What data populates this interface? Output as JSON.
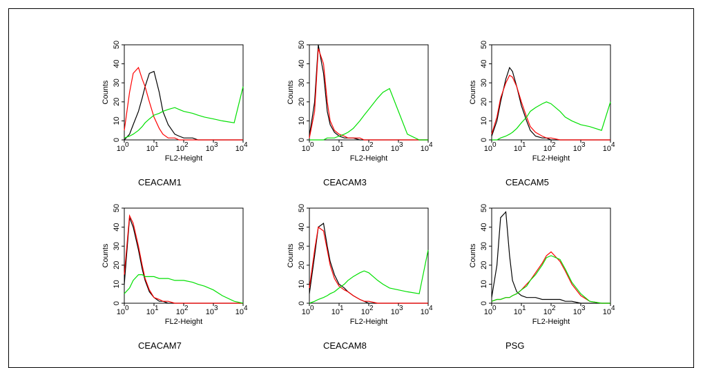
{
  "chart_data": [
    {
      "type": "line",
      "title": "CEACAM1",
      "xlabel": "FL2-Height",
      "ylabel": "Counts",
      "log_x": true,
      "x": [
        1,
        1.5,
        2,
        3,
        4,
        5,
        7,
        10,
        15,
        20,
        30,
        50,
        70,
        100,
        200,
        300,
        500,
        1000,
        2000,
        5000,
        10000
      ],
      "xlim": [
        1,
        10000
      ],
      "ylim": [
        0,
        50
      ],
      "yticks": [
        0,
        10,
        20,
        30,
        40,
        50
      ],
      "xticks": [
        {
          "value": 1,
          "label": "10",
          "sup": "0"
        },
        {
          "value": 10,
          "label": "10",
          "sup": "1"
        },
        {
          "value": 100,
          "label": "10",
          "sup": "2"
        },
        {
          "value": 1000,
          "label": "10",
          "sup": "3"
        },
        {
          "value": 10000,
          "label": "10",
          "sup": "4"
        }
      ],
      "series": [
        {
          "color": "#000000",
          "values": [
            0,
            3,
            8,
            15,
            22,
            28,
            35,
            36,
            25,
            15,
            8,
            3,
            2,
            1,
            1,
            0,
            0,
            0,
            0,
            0,
            0
          ]
        },
        {
          "color": "#ff0000",
          "values": [
            5,
            25,
            35,
            38,
            32,
            28,
            20,
            12,
            6,
            3,
            1,
            1,
            0,
            0,
            0,
            0,
            0,
            0,
            0,
            0,
            0
          ]
        },
        {
          "color": "#00e000",
          "values": [
            1,
            2,
            3,
            5,
            7,
            9,
            11,
            13,
            14,
            15,
            16,
            17,
            16,
            15,
            14,
            13,
            12,
            11,
            10,
            9,
            28
          ]
        }
      ]
    },
    {
      "type": "line",
      "title": "CEACAM3",
      "xlabel": "FL2-Height",
      "ylabel": "Counts",
      "log_x": true,
      "x": [
        1,
        1.5,
        2,
        3,
        4,
        5,
        7,
        10,
        15,
        20,
        30,
        50,
        70,
        100,
        200,
        300,
        500,
        1000,
        2000,
        5000,
        10000
      ],
      "xlim": [
        1,
        10000
      ],
      "ylim": [
        0,
        50
      ],
      "yticks": [
        0,
        10,
        20,
        30,
        40,
        50
      ],
      "xticks": [
        {
          "value": 1,
          "label": "10",
          "sup": "0"
        },
        {
          "value": 10,
          "label": "10",
          "sup": "1"
        },
        {
          "value": 100,
          "label": "10",
          "sup": "2"
        },
        {
          "value": 1000,
          "label": "10",
          "sup": "3"
        },
        {
          "value": 10000,
          "label": "10",
          "sup": "4"
        }
      ],
      "series": [
        {
          "color": "#000000",
          "values": [
            2,
            20,
            50,
            35,
            15,
            8,
            4,
            2,
            1,
            1,
            1,
            0,
            0,
            0,
            0,
            0,
            0,
            0,
            0,
            0,
            0
          ]
        },
        {
          "color": "#ff0000",
          "values": [
            1,
            15,
            48,
            40,
            20,
            10,
            5,
            3,
            2,
            1,
            1,
            1,
            0,
            0,
            0,
            0,
            0,
            0,
            0,
            0,
            0
          ]
        },
        {
          "color": "#00e000",
          "values": [
            0,
            0,
            0,
            0,
            1,
            1,
            1,
            2,
            3,
            4,
            6,
            10,
            13,
            16,
            22,
            25,
            27,
            15,
            3,
            0,
            0
          ]
        }
      ]
    },
    {
      "type": "line",
      "title": "CEACAM5",
      "xlabel": "FL2-Height",
      "ylabel": "Counts",
      "log_x": true,
      "x": [
        1,
        1.5,
        2,
        3,
        4,
        5,
        7,
        10,
        15,
        20,
        30,
        50,
        70,
        100,
        200,
        300,
        500,
        1000,
        2000,
        5000,
        10000
      ],
      "xlim": [
        1,
        10000
      ],
      "ylim": [
        0,
        50
      ],
      "yticks": [
        0,
        10,
        20,
        30,
        40,
        50
      ],
      "xticks": [
        {
          "value": 1,
          "label": "10",
          "sup": "0"
        },
        {
          "value": 10,
          "label": "10",
          "sup": "1"
        },
        {
          "value": 100,
          "label": "10",
          "sup": "2"
        },
        {
          "value": 1000,
          "label": "10",
          "sup": "3"
        },
        {
          "value": 10000,
          "label": "10",
          "sup": "4"
        }
      ],
      "series": [
        {
          "color": "#000000",
          "values": [
            2,
            10,
            20,
            32,
            38,
            36,
            28,
            18,
            10,
            5,
            2,
            1,
            1,
            0,
            0,
            0,
            0,
            0,
            0,
            0,
            0
          ]
        },
        {
          "color": "#ff0000",
          "values": [
            3,
            12,
            22,
            30,
            34,
            33,
            28,
            20,
            12,
            7,
            4,
            2,
            1,
            1,
            0,
            0,
            0,
            0,
            0,
            0,
            0
          ]
        },
        {
          "color": "#00e000",
          "values": [
            0,
            0,
            1,
            2,
            3,
            4,
            6,
            9,
            12,
            15,
            17,
            19,
            20,
            19,
            15,
            12,
            10,
            8,
            7,
            5,
            20
          ]
        }
      ]
    },
    {
      "type": "line",
      "title": "CEACAM7",
      "xlabel": "FL2-Height",
      "ylabel": "Counts",
      "log_x": true,
      "x": [
        1,
        1.5,
        2,
        3,
        4,
        5,
        7,
        10,
        15,
        20,
        30,
        50,
        70,
        100,
        200,
        300,
        500,
        1000,
        2000,
        5000,
        10000
      ],
      "xlim": [
        1,
        10000
      ],
      "ylim": [
        0,
        50
      ],
      "yticks": [
        0,
        10,
        20,
        30,
        40,
        50
      ],
      "xticks": [
        {
          "value": 1,
          "label": "10",
          "sup": "0"
        },
        {
          "value": 10,
          "label": "10",
          "sup": "1"
        },
        {
          "value": 100,
          "label": "10",
          "sup": "2"
        },
        {
          "value": 1000,
          "label": "10",
          "sup": "3"
        },
        {
          "value": 10000,
          "label": "10",
          "sup": "4"
        }
      ],
      "series": [
        {
          "color": "#000000",
          "values": [
            10,
            45,
            40,
            28,
            18,
            12,
            6,
            3,
            1,
            1,
            0,
            0,
            0,
            0,
            0,
            0,
            0,
            0,
            0,
            0,
            0
          ]
        },
        {
          "color": "#ff0000",
          "values": [
            15,
            46,
            42,
            30,
            20,
            13,
            7,
            3,
            2,
            1,
            1,
            0,
            0,
            0,
            0,
            0,
            0,
            0,
            0,
            0,
            0
          ]
        },
        {
          "color": "#00e000",
          "values": [
            5,
            8,
            12,
            15,
            15,
            14,
            14,
            14,
            13,
            13,
            13,
            12,
            12,
            12,
            11,
            10,
            9,
            7,
            4,
            1,
            0
          ]
        }
      ]
    },
    {
      "type": "line",
      "title": "CEACAM8",
      "xlabel": "FL2-Height",
      "ylabel": "Counts",
      "log_x": true,
      "x": [
        1,
        1.5,
        2,
        3,
        4,
        5,
        7,
        10,
        15,
        20,
        30,
        50,
        70,
        100,
        200,
        300,
        500,
        1000,
        2000,
        5000,
        10000
      ],
      "xlim": [
        1,
        10000
      ],
      "ylim": [
        0,
        50
      ],
      "yticks": [
        0,
        10,
        20,
        30,
        40,
        50
      ],
      "xticks": [
        {
          "value": 1,
          "label": "10",
          "sup": "0"
        },
        {
          "value": 10,
          "label": "10",
          "sup": "1"
        },
        {
          "value": 100,
          "label": "10",
          "sup": "2"
        },
        {
          "value": 1000,
          "label": "10",
          "sup": "3"
        },
        {
          "value": 10000,
          "label": "10",
          "sup": "4"
        }
      ],
      "series": [
        {
          "color": "#000000",
          "values": [
            5,
            25,
            40,
            42,
            30,
            22,
            15,
            10,
            8,
            6,
            4,
            2,
            1,
            0,
            0,
            0,
            0,
            0,
            0,
            0,
            0
          ]
        },
        {
          "color": "#ff0000",
          "values": [
            8,
            28,
            40,
            38,
            28,
            20,
            13,
            9,
            7,
            6,
            4,
            2,
            1,
            1,
            0,
            0,
            0,
            0,
            0,
            0,
            0
          ]
        },
        {
          "color": "#00e000",
          "values": [
            0,
            1,
            2,
            3,
            4,
            5,
            6,
            8,
            10,
            12,
            14,
            16,
            17,
            16,
            12,
            10,
            8,
            7,
            6,
            5,
            28
          ]
        }
      ]
    },
    {
      "type": "line",
      "title": "PSG",
      "xlabel": "FL2-Height",
      "ylabel": "Counts",
      "log_x": true,
      "x": [
        1,
        1.5,
        2,
        3,
        4,
        5,
        7,
        10,
        15,
        20,
        30,
        50,
        70,
        100,
        200,
        300,
        500,
        1000,
        2000,
        5000,
        10000
      ],
      "xlim": [
        1,
        10000
      ],
      "ylim": [
        0,
        50
      ],
      "yticks": [
        0,
        10,
        20,
        30,
        40,
        50
      ],
      "xticks": [
        {
          "value": 1,
          "label": "10",
          "sup": "0"
        },
        {
          "value": 10,
          "label": "10",
          "sup": "1"
        },
        {
          "value": 100,
          "label": "10",
          "sup": "2"
        },
        {
          "value": 1000,
          "label": "10",
          "sup": "3"
        },
        {
          "value": 10000,
          "label": "10",
          "sup": "4"
        }
      ],
      "series": [
        {
          "color": "#000000",
          "values": [
            3,
            20,
            45,
            48,
            25,
            12,
            6,
            4,
            3,
            3,
            3,
            2,
            2,
            2,
            2,
            1,
            1,
            0,
            0,
            0,
            0
          ]
        },
        {
          "color": "#ff0000",
          "values": [
            1,
            2,
            2,
            3,
            3,
            4,
            5,
            7,
            10,
            12,
            16,
            21,
            25,
            27,
            22,
            17,
            10,
            4,
            1,
            0,
            0
          ]
        },
        {
          "color": "#00e000",
          "values": [
            1,
            2,
            2,
            3,
            3,
            4,
            5,
            7,
            9,
            12,
            15,
            20,
            24,
            25,
            23,
            18,
            11,
            5,
            1,
            0,
            0
          ]
        }
      ]
    }
  ]
}
